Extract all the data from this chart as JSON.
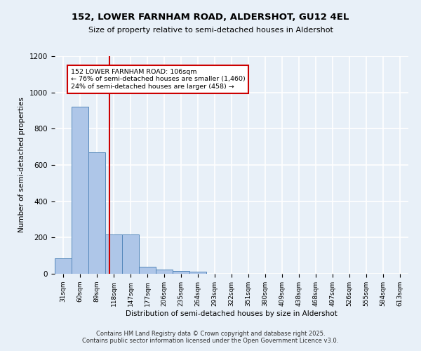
{
  "title1": "152, LOWER FARNHAM ROAD, ALDERSHOT, GU12 4EL",
  "title2": "Size of property relative to semi-detached houses in Aldershot",
  "xlabel": "Distribution of semi-detached houses by size in Aldershot",
  "ylabel": "Number of semi-detached properties",
  "categories": [
    "31sqm",
    "60sqm",
    "89sqm",
    "118sqm",
    "147sqm",
    "177sqm",
    "206sqm",
    "235sqm",
    "264sqm",
    "293sqm",
    "322sqm",
    "351sqm",
    "380sqm",
    "409sqm",
    "438sqm",
    "468sqm",
    "497sqm",
    "526sqm",
    "555sqm",
    "584sqm",
    "613sqm"
  ],
  "values": [
    85,
    920,
    670,
    215,
    215,
    40,
    25,
    15,
    10,
    0,
    0,
    0,
    0,
    0,
    0,
    0,
    0,
    0,
    0,
    0,
    0
  ],
  "bar_color": "#aec6e8",
  "bar_edge_color": "#5588bb",
  "background_color": "#e8f0f8",
  "grid_color": "#ffffff",
  "annotation_box_color": "#cc0000",
  "property_line_color": "#cc0000",
  "property_line_x": 2.75,
  "annotation_text_line1": "152 LOWER FARNHAM ROAD: 106sqm",
  "annotation_text_line2": "← 76% of semi-detached houses are smaller (1,460)",
  "annotation_text_line3": "24% of semi-detached houses are larger (458) →",
  "ylim": [
    0,
    1200
  ],
  "yticks": [
    0,
    200,
    400,
    600,
    800,
    1000,
    1200
  ],
  "footer1": "Contains HM Land Registry data © Crown copyright and database right 2025.",
  "footer2": "Contains public sector information licensed under the Open Government Licence v3.0."
}
